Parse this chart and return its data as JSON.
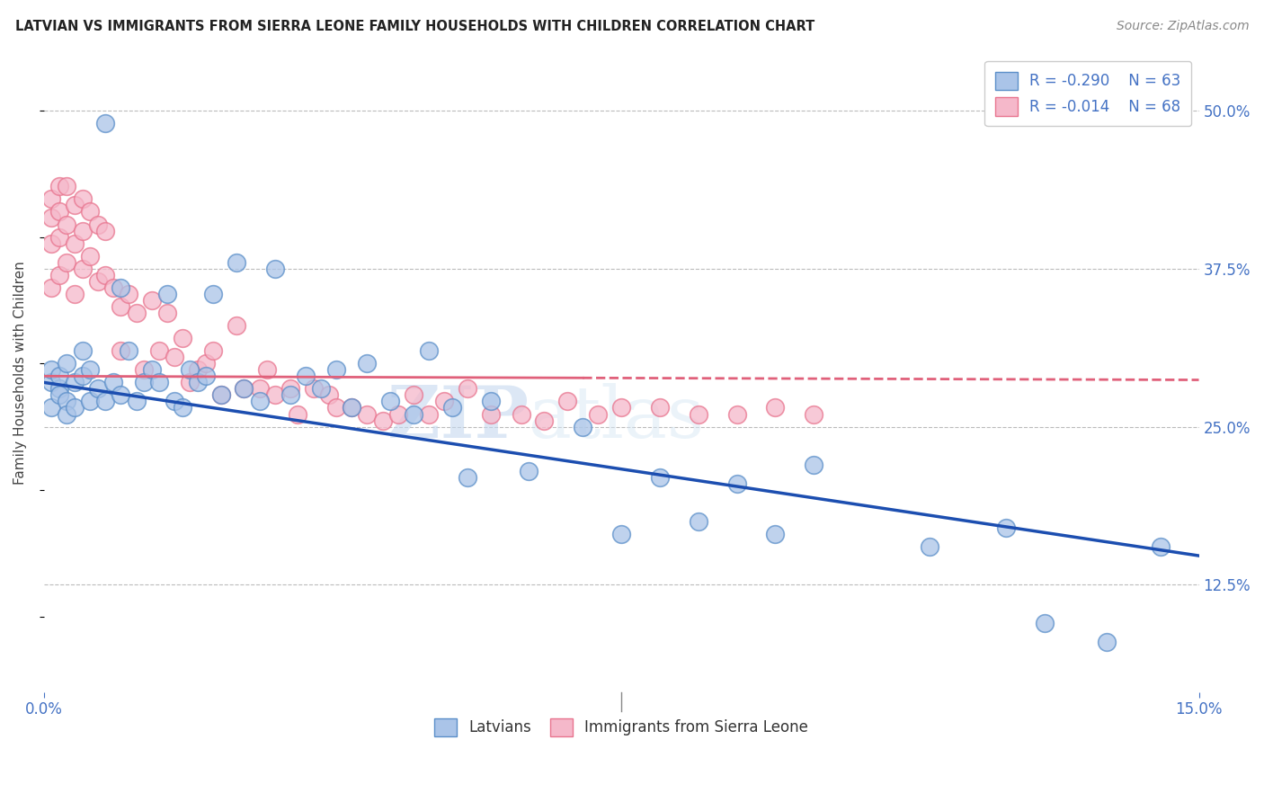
{
  "title": "LATVIAN VS IMMIGRANTS FROM SIERRA LEONE FAMILY HOUSEHOLDS WITH CHILDREN CORRELATION CHART",
  "source": "Source: ZipAtlas.com",
  "ylabel": "Family Households with Children",
  "ytick_labels": [
    "12.5%",
    "25.0%",
    "37.5%",
    "50.0%"
  ],
  "ytick_values": [
    0.125,
    0.25,
    0.375,
    0.5
  ],
  "xmin": 0.0,
  "xmax": 0.15,
  "ymin": 0.04,
  "ymax": 0.545,
  "latvian_color": "#aac4e8",
  "latvian_edge_color": "#5b8fc9",
  "latvian_line_color": "#1c4eb0",
  "sierra_leone_color": "#f5b8ca",
  "sierra_leone_edge_color": "#e8758f",
  "sierra_leone_line_color": "#e0607a",
  "R_latvian": -0.29,
  "N_latvian": 63,
  "R_sierra": -0.014,
  "N_sierra": 68,
  "watermark_zip": "ZIP",
  "watermark_atlas": "atlas",
  "legend_label_latvian": "Latvians",
  "legend_label_sierra": "Immigrants from Sierra Leone",
  "title_color": "#222222",
  "axis_label_color": "#4472c4",
  "grid_color": "#bbbbbb",
  "background_color": "#ffffff",
  "blue_line_y0": 0.285,
  "blue_line_y1": 0.148,
  "pink_line_y0": 0.29,
  "pink_line_y1": 0.287,
  "latvian_scatter_x": [
    0.001,
    0.001,
    0.001,
    0.002,
    0.002,
    0.002,
    0.003,
    0.003,
    0.003,
    0.004,
    0.004,
    0.005,
    0.005,
    0.006,
    0.006,
    0.007,
    0.008,
    0.008,
    0.009,
    0.01,
    0.01,
    0.011,
    0.012,
    0.013,
    0.014,
    0.015,
    0.016,
    0.017,
    0.018,
    0.019,
    0.02,
    0.021,
    0.022,
    0.023,
    0.025,
    0.026,
    0.028,
    0.03,
    0.032,
    0.034,
    0.036,
    0.038,
    0.04,
    0.042,
    0.045,
    0.048,
    0.05,
    0.053,
    0.055,
    0.058,
    0.063,
    0.07,
    0.075,
    0.08,
    0.085,
    0.09,
    0.095,
    0.1,
    0.115,
    0.125,
    0.13,
    0.138,
    0.145
  ],
  "latvian_scatter_y": [
    0.285,
    0.295,
    0.265,
    0.28,
    0.29,
    0.275,
    0.3,
    0.27,
    0.26,
    0.285,
    0.265,
    0.31,
    0.29,
    0.295,
    0.27,
    0.28,
    0.49,
    0.27,
    0.285,
    0.36,
    0.275,
    0.31,
    0.27,
    0.285,
    0.295,
    0.285,
    0.355,
    0.27,
    0.265,
    0.295,
    0.285,
    0.29,
    0.355,
    0.275,
    0.38,
    0.28,
    0.27,
    0.375,
    0.275,
    0.29,
    0.28,
    0.295,
    0.265,
    0.3,
    0.27,
    0.26,
    0.31,
    0.265,
    0.21,
    0.27,
    0.215,
    0.25,
    0.165,
    0.21,
    0.175,
    0.205,
    0.165,
    0.22,
    0.155,
    0.17,
    0.095,
    0.08,
    0.155
  ],
  "sierra_scatter_x": [
    0.001,
    0.001,
    0.001,
    0.001,
    0.002,
    0.002,
    0.002,
    0.002,
    0.003,
    0.003,
    0.003,
    0.004,
    0.004,
    0.004,
    0.005,
    0.005,
    0.005,
    0.006,
    0.006,
    0.007,
    0.007,
    0.008,
    0.008,
    0.009,
    0.01,
    0.01,
    0.011,
    0.012,
    0.013,
    0.014,
    0.015,
    0.016,
    0.017,
    0.018,
    0.019,
    0.02,
    0.021,
    0.022,
    0.023,
    0.025,
    0.026,
    0.028,
    0.029,
    0.03,
    0.032,
    0.033,
    0.035,
    0.037,
    0.038,
    0.04,
    0.042,
    0.044,
    0.046,
    0.048,
    0.05,
    0.052,
    0.055,
    0.058,
    0.062,
    0.065,
    0.068,
    0.072,
    0.075,
    0.08,
    0.085,
    0.09,
    0.095,
    0.1
  ],
  "sierra_scatter_y": [
    0.43,
    0.415,
    0.395,
    0.36,
    0.44,
    0.42,
    0.4,
    0.37,
    0.44,
    0.41,
    0.38,
    0.425,
    0.395,
    0.355,
    0.43,
    0.405,
    0.375,
    0.42,
    0.385,
    0.41,
    0.365,
    0.405,
    0.37,
    0.36,
    0.345,
    0.31,
    0.355,
    0.34,
    0.295,
    0.35,
    0.31,
    0.34,
    0.305,
    0.32,
    0.285,
    0.295,
    0.3,
    0.31,
    0.275,
    0.33,
    0.28,
    0.28,
    0.295,
    0.275,
    0.28,
    0.26,
    0.28,
    0.275,
    0.265,
    0.265,
    0.26,
    0.255,
    0.26,
    0.275,
    0.26,
    0.27,
    0.28,
    0.26,
    0.26,
    0.255,
    0.27,
    0.26,
    0.265,
    0.265,
    0.26,
    0.26,
    0.265,
    0.26
  ]
}
